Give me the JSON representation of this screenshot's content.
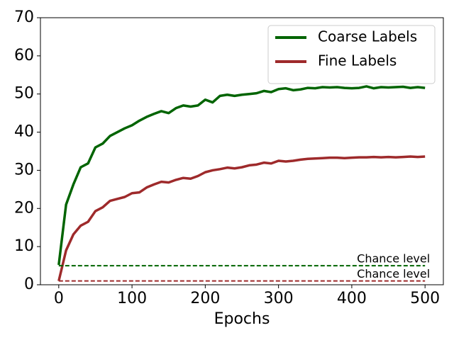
{
  "chart_data": {
    "type": "line",
    "xlabel": "Epochs",
    "x": [
      0,
      10,
      20,
      30,
      40,
      50,
      60,
      70,
      80,
      90,
      100,
      110,
      120,
      130,
      140,
      150,
      160,
      170,
      180,
      190,
      200,
      210,
      220,
      230,
      240,
      250,
      260,
      270,
      280,
      290,
      300,
      310,
      320,
      330,
      340,
      350,
      360,
      370,
      380,
      390,
      400,
      410,
      420,
      430,
      440,
      450,
      460,
      470,
      480,
      490,
      500
    ],
    "series": [
      {
        "name": "Coarse Labels",
        "color": "#006400",
        "values": [
          5.2,
          21,
          26.3,
          30.8,
          31.8,
          36,
          37,
          39,
          40,
          41,
          41.8,
          43,
          44,
          44.8,
          45.5,
          45,
          46.3,
          47,
          46.7,
          47,
          48.5,
          47.8,
          49.5,
          49.8,
          49.5,
          49.8,
          50,
          50.2,
          50.8,
          50.5,
          51.3,
          51.5,
          51,
          51.2,
          51.6,
          51.5,
          51.8,
          51.7,
          51.8,
          51.6,
          51.5,
          51.6,
          52,
          51.5,
          51.8,
          51.7,
          51.8,
          51.9,
          51.6,
          51.8,
          51.6
        ]
      },
      {
        "name": "Fine Labels",
        "color": "#9e2a2b",
        "values": [
          1,
          9,
          13.2,
          15.5,
          16.5,
          19.3,
          20.3,
          22,
          22.5,
          23,
          24,
          24.2,
          25.5,
          26.3,
          27,
          26.8,
          27.5,
          28,
          27.8,
          28.5,
          29.5,
          30,
          30.3,
          30.7,
          30.5,
          30.8,
          31.3,
          31.5,
          32,
          31.8,
          32.5,
          32.3,
          32.5,
          32.8,
          33,
          33.1,
          33.2,
          33.3,
          33.3,
          33.2,
          33.3,
          33.4,
          33.4,
          33.5,
          33.4,
          33.5,
          33.4,
          33.5,
          33.6,
          33.5,
          33.6
        ]
      }
    ],
    "reference_lines": [
      {
        "value": 5,
        "color": "#006400",
        "label": "Chance level"
      },
      {
        "value": 1,
        "color": "#9e2a2b",
        "label": "Chance level"
      }
    ],
    "xlim": [
      -25,
      525
    ],
    "ylim": [
      0,
      70
    ],
    "xticks": [
      0,
      100,
      200,
      300,
      400,
      500
    ],
    "yticks": [
      0,
      10,
      20,
      30,
      40,
      50,
      60,
      70
    ],
    "legend": "upper right"
  }
}
